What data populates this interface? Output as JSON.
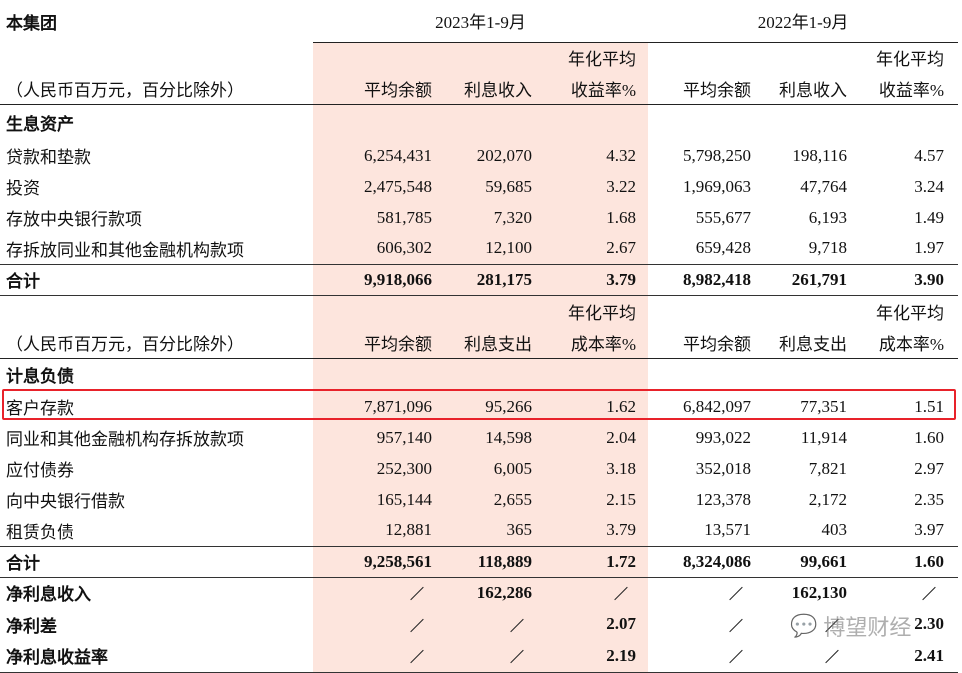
{
  "title": "本集团",
  "periods": [
    "2023年1-9月",
    "2022年1-9月"
  ],
  "sections": [
    {
      "header_top": [
        "",
        "",
        "年化平均",
        "",
        "",
        "年化平均"
      ],
      "unit_label": "（人民币百万元，百分比除外）",
      "columns": [
        "平均余额",
        "利息收入",
        "收益率%",
        "平均余额",
        "利息收入",
        "收益率%"
      ],
      "group": "生息资产",
      "rows": [
        {
          "label": "贷款和垫款",
          "values": [
            "6,254,431",
            "202,070",
            "4.32",
            "5,798,250",
            "198,116",
            "4.57"
          ]
        },
        {
          "label": "投资",
          "values": [
            "2,475,548",
            "59,685",
            "3.22",
            "1,969,063",
            "47,764",
            "3.24"
          ]
        },
        {
          "label": "存放中央银行款项",
          "values": [
            "581,785",
            "7,320",
            "1.68",
            "555,677",
            "6,193",
            "1.49"
          ]
        },
        {
          "label": "存拆放同业和其他金融机构款项",
          "values": [
            "606,302",
            "12,100",
            "2.67",
            "659,428",
            "9,718",
            "1.97"
          ]
        }
      ],
      "total": {
        "label": "合计",
        "values": [
          "9,918,066",
          "281,175",
          "3.79",
          "8,982,418",
          "261,791",
          "3.90"
        ]
      }
    },
    {
      "header_top": [
        "",
        "",
        "年化平均",
        "",
        "",
        "年化平均"
      ],
      "unit_label": "（人民币百万元，百分比除外）",
      "columns": [
        "平均余额",
        "利息支出",
        "成本率%",
        "平均余额",
        "利息支出",
        "成本率%"
      ],
      "group": "计息负债",
      "rows": [
        {
          "label": "客户存款",
          "values": [
            "7,871,096",
            "95,266",
            "1.62",
            "6,842,097",
            "77,351",
            "1.51"
          ],
          "highlighted": true
        },
        {
          "label": "同业和其他金融机构存拆放款项",
          "values": [
            "957,140",
            "14,598",
            "2.04",
            "993,022",
            "11,914",
            "1.60"
          ]
        },
        {
          "label": "应付债券",
          "values": [
            "252,300",
            "6,005",
            "3.18",
            "352,018",
            "7,821",
            "2.97"
          ]
        },
        {
          "label": "向中央银行借款",
          "values": [
            "165,144",
            "2,655",
            "2.15",
            "123,378",
            "2,172",
            "2.35"
          ]
        },
        {
          "label": "租赁负债",
          "values": [
            "12,881",
            "365",
            "3.79",
            "13,571",
            "403",
            "3.97"
          ]
        }
      ],
      "total": {
        "label": "合计",
        "values": [
          "9,258,561",
          "118,889",
          "1.72",
          "8,324,086",
          "99,661",
          "1.60"
        ]
      }
    }
  ],
  "summary": [
    {
      "label": "净利息收入",
      "values": [
        "/",
        "162,286",
        "/",
        "/",
        "162,130",
        "/"
      ]
    },
    {
      "label": "净利差",
      "values": [
        "/",
        "/",
        "2.07",
        "/",
        "/",
        "2.30"
      ]
    },
    {
      "label": "净利息收益率",
      "values": [
        "/",
        "/",
        "2.19",
        "/",
        "/",
        "2.41"
      ]
    }
  ],
  "watermark": "博望财经",
  "colors": {
    "highlight_border": "#e8222a",
    "period_shade": "#fde5dd"
  }
}
